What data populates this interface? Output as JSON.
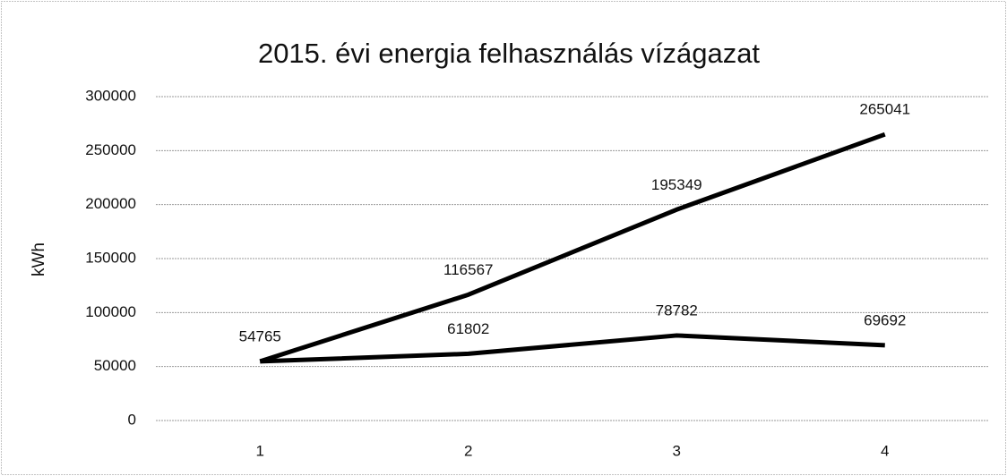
{
  "chart_data": {
    "type": "line",
    "title": "2015. évi energia felhasználás vízágazat",
    "y_label": "kWh",
    "categories": [
      "1",
      "2",
      "3",
      "4"
    ],
    "series": [
      {
        "color": "#000000",
        "values": [
          54765,
          116567,
          195349,
          265041
        ]
      },
      {
        "color": "#000000",
        "values": [
          54765,
          61802,
          78782,
          69692
        ]
      }
    ],
    "ylim": [
      0,
      300000
    ],
    "yticks": [
      0,
      50000,
      100000,
      150000,
      200000,
      250000,
      300000
    ],
    "grid": true
  }
}
